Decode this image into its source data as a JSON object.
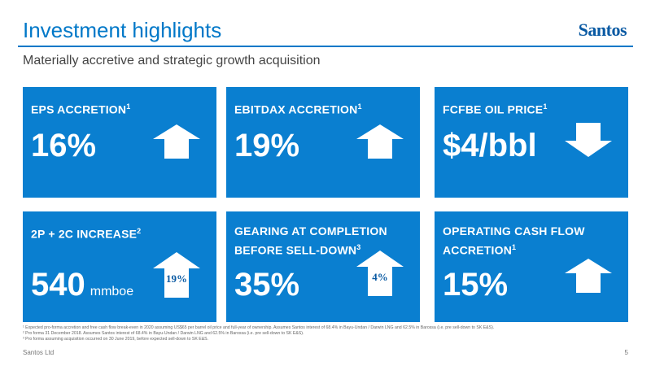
{
  "header": {
    "title": "Investment highlights",
    "logo": "Santos",
    "subtitle": "Materially accretive and strategic growth acquisition"
  },
  "tiles": [
    {
      "label": "EPS ACCRETION",
      "sup": "1",
      "value": "16%",
      "unit": "",
      "arrow": "up-arrow-icon"
    },
    {
      "label": "EBITDAX ACCRETION",
      "sup": "1",
      "value": "19%",
      "unit": "",
      "arrow": "up-arrow-icon"
    },
    {
      "label": "FCFBE OIL PRICE",
      "sup": "1",
      "value": "$4/bbl",
      "unit": "",
      "arrow": "down-arrow-icon"
    },
    {
      "label": "2P + 2C INCREASE",
      "sup": "2",
      "value": "540",
      "unit": "mmboe",
      "badge": "19%"
    },
    {
      "label": "GEARING AT COMPLETION BEFORE SELL-DOWN",
      "sup": "3",
      "value": "35%",
      "unit": "",
      "badge": "4%"
    },
    {
      "label": "OPERATING CASH FLOW ACCRETION",
      "sup": "1",
      "value": "15%",
      "unit": "",
      "arrow": "up-arrow-icon"
    }
  ],
  "footnotes": [
    "¹ Expected pro-forma accretion and free cash flow break-even in 2020 assuming US$65 per barrel oil price and full-year of ownership. Assumes Santos interest of 68.4% in Bayu-Undan / Darwin LNG and 62.5% in Barossa (i.e. pre sell-down to SK E&S).",
    "² Pro forma 31 December 2018. Assumes Santos interest of 68.4% in Bayu-Undan / Darwin LNG and 62.5% in Barossa (i.e. pre sell-down to SK E&S).",
    "³ Pro forma assuming acquisition occurred on 30 June 2019, before expected sell-down to SK E&S."
  ],
  "footer": {
    "company": "Santos Ltd",
    "page": "5"
  },
  "colors": {
    "accent": "#0078c8",
    "tile": "#0a7fd0",
    "logo": "#0a5aa3"
  }
}
